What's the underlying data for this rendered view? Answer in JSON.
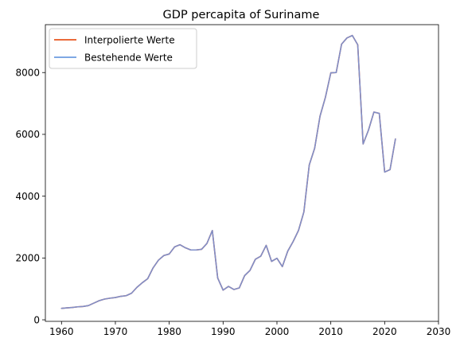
{
  "chart_data": {
    "type": "line",
    "title": "GDP percapita of Suriname",
    "xlabel": "",
    "ylabel": "",
    "xlim": [
      1957,
      2030
    ],
    "ylim": [
      -50,
      9550
    ],
    "xticks": [
      1960,
      1970,
      1980,
      1990,
      2000,
      2010,
      2020,
      2030
    ],
    "yticks": [
      0,
      2000,
      4000,
      6000,
      8000
    ],
    "legend_position": "top-left",
    "colors": {
      "interpolated": "#e8541e",
      "existing": "#6b9be0",
      "overlap": "#7f8fc9"
    },
    "series": [
      {
        "name": "Interpolierte Werte",
        "color": "#e8541e",
        "x": [
          1960,
          1961,
          1962,
          1963,
          1964,
          1965,
          1966,
          1967,
          1968,
          1969,
          1970,
          1971,
          1972,
          1973,
          1974,
          1975,
          1976,
          1977,
          1978,
          1979,
          1980,
          1981,
          1982,
          1983,
          1984,
          1985,
          1986,
          1987,
          1988,
          1989,
          1990,
          1991,
          1992,
          1993,
          1994,
          1995,
          1996,
          1997,
          1998,
          1999,
          2000,
          2001,
          2002,
          2003,
          2004,
          2005,
          2006,
          2007,
          2008,
          2009,
          2010,
          2011,
          2012,
          2013,
          2014,
          2015,
          2016,
          2017,
          2018,
          2019,
          2020,
          2021,
          2022
        ],
        "values": [
          370,
          385,
          400,
          420,
          430,
          460,
          540,
          620,
          670,
          700,
          720,
          760,
          780,
          860,
          1050,
          1200,
          1330,
          1680,
          1930,
          2080,
          2130,
          2360,
          2430,
          2330,
          2260,
          2260,
          2280,
          2470,
          2890,
          1350,
          960,
          1080,
          980,
          1030,
          1430,
          1600,
          1960,
          2060,
          2410,
          1890,
          1990,
          1720,
          2220,
          2530,
          2890,
          3490,
          5010,
          5550,
          6590,
          7200,
          7990,
          8000,
          8920,
          9120,
          9200,
          8900,
          5690,
          6140,
          6720,
          6680,
          4780,
          4860,
          5850
        ]
      },
      {
        "name": "Bestehende Werte",
        "color": "#6b9be0",
        "x": [
          1960,
          1961,
          1962,
          1963,
          1964,
          1965,
          1966,
          1967,
          1968,
          1969,
          1970,
          1971,
          1972,
          1973,
          1974,
          1975,
          1976,
          1977,
          1978,
          1979,
          1980,
          1981,
          1982,
          1983,
          1984,
          1985,
          1986,
          1987,
          1988,
          1989,
          1990,
          1991,
          1992,
          1993,
          1994,
          1995,
          1996,
          1997,
          1998,
          1999,
          2000,
          2001,
          2002,
          2003,
          2004,
          2005,
          2006,
          2007,
          2008,
          2009,
          2010,
          2011,
          2012,
          2013,
          2014,
          2015,
          2016,
          2017,
          2018,
          2019,
          2020,
          2021,
          2022
        ],
        "values": [
          370,
          385,
          400,
          420,
          430,
          460,
          540,
          620,
          670,
          700,
          720,
          760,
          780,
          860,
          1050,
          1200,
          1330,
          1680,
          1930,
          2080,
          2130,
          2360,
          2430,
          2330,
          2260,
          2260,
          2280,
          2470,
          2890,
          1350,
          960,
          1080,
          980,
          1030,
          1430,
          1600,
          1960,
          2060,
          2410,
          1890,
          1990,
          1720,
          2220,
          2530,
          2890,
          3490,
          5010,
          5550,
          6590,
          7200,
          7990,
          8000,
          8920,
          9120,
          9200,
          8900,
          5690,
          6140,
          6720,
          6680,
          4780,
          4860,
          5850
        ]
      }
    ]
  }
}
